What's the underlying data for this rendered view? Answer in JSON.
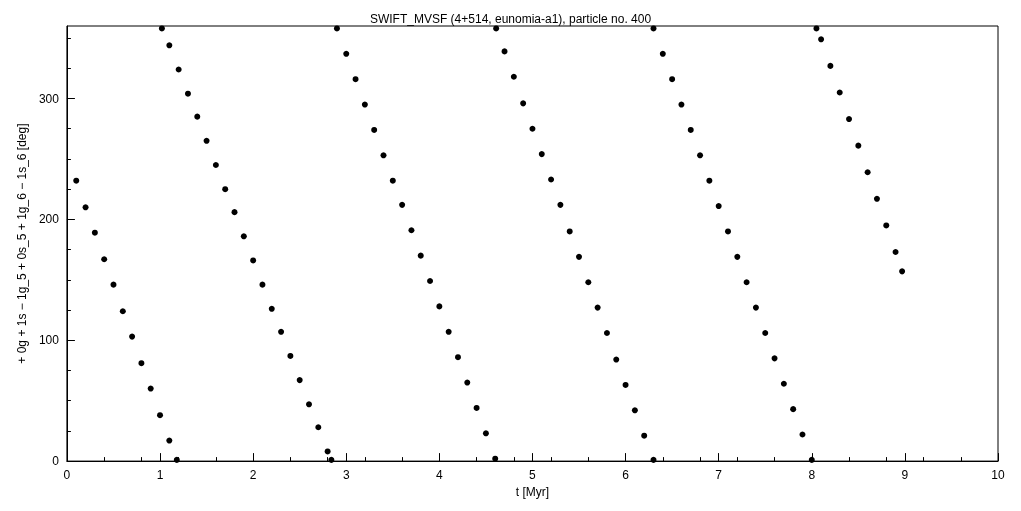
{
  "chart_data": {
    "type": "scatter",
    "title": "SWIFT_MVSF (4+514, eunomia-a1), particle no. 400",
    "xlabel": "t [Myr]",
    "ylabel": "+ 0g + 1s − 1g_5 + 0s_5 + 1g_6 − 1s_6 [deg]",
    "color": "#000000",
    "x": [
      0.1,
      0.2,
      0.3,
      0.4,
      0.5,
      0.6,
      0.7,
      0.8,
      0.9,
      1.0,
      1.1,
      1.18,
      1.02,
      1.1,
      1.2,
      1.3,
      1.4,
      1.5,
      1.6,
      1.7,
      1.8,
      1.9,
      2.0,
      2.1,
      2.2,
      2.3,
      2.4,
      2.5,
      2.6,
      2.7,
      2.8,
      2.84,
      2.9,
      3.0,
      3.1,
      3.2,
      3.3,
      3.4,
      3.5,
      3.6,
      3.7,
      3.8,
      3.9,
      4.0,
      4.1,
      4.2,
      4.3,
      4.4,
      4.5,
      4.6,
      4.61,
      4.7,
      4.8,
      4.9,
      5.0,
      5.1,
      5.2,
      5.3,
      5.4,
      5.5,
      5.6,
      5.7,
      5.8,
      5.9,
      6.0,
      6.1,
      6.2,
      6.3,
      6.3,
      6.4,
      6.5,
      6.6,
      6.7,
      6.8,
      6.9,
      7.0,
      7.1,
      7.2,
      7.3,
      7.4,
      7.5,
      7.6,
      7.7,
      7.8,
      7.9,
      8.0,
      8.05,
      8.1,
      8.2,
      8.3,
      8.4,
      8.5,
      8.6,
      8.7,
      8.8,
      8.9,
      8.97
    ],
    "values": [
      232,
      210,
      189,
      167,
      146,
      124,
      103,
      81,
      60,
      38,
      17,
      1,
      358,
      344,
      324,
      304,
      285,
      265,
      245,
      225,
      206,
      186,
      166,
      146,
      126,
      107,
      87,
      67,
      47,
      28,
      8,
      1,
      358,
      337,
      316,
      295,
      274,
      253,
      232,
      212,
      191,
      170,
      149,
      128,
      107,
      86,
      65,
      44,
      23,
      2,
      358,
      339,
      318,
      296,
      275,
      254,
      233,
      212,
      190,
      169,
      148,
      127,
      106,
      84,
      63,
      42,
      21,
      1,
      358,
      337,
      316,
      295,
      274,
      253,
      232,
      211,
      190,
      169,
      148,
      127,
      106,
      85,
      64,
      43,
      22,
      1,
      358,
      349,
      327,
      305,
      283,
      261,
      239,
      217,
      195,
      173,
      157
    ],
    "xlim": [
      0,
      10
    ],
    "xticks": [
      0,
      1,
      2,
      3,
      4,
      5,
      6,
      7,
      8,
      9,
      10
    ],
    "ylim": [
      0,
      360
    ],
    "yticks": [
      0,
      100,
      200,
      300
    ],
    "grid": false,
    "marker": "circle"
  }
}
